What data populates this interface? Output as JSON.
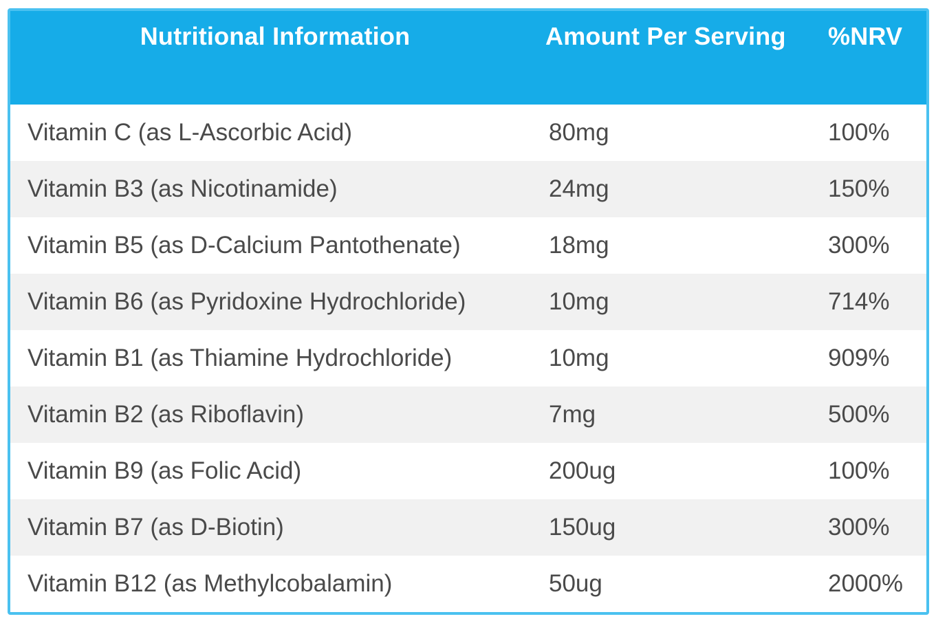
{
  "colors": {
    "header_bg": "#16ace8",
    "border": "#4ac1f0",
    "row_bg": "#ffffff",
    "row_alt_bg": "#f1f1f1",
    "header_text": "#ffffff",
    "body_text": "#4a4a4a"
  },
  "table": {
    "headers": [
      "Nutritional Information",
      "Amount Per Serving",
      "%NRV"
    ],
    "rows": [
      {
        "nutrient": "Vitamin C (as L-Ascorbic Acid)",
        "amount": "80mg",
        "nrv": "100%"
      },
      {
        "nutrient": "Vitamin B3 (as Nicotinamide)",
        "amount": "24mg",
        "nrv": "150%"
      },
      {
        "nutrient": "Vitamin B5 (as D-Calcium Pantothenate)",
        "amount": "18mg",
        "nrv": "300%"
      },
      {
        "nutrient": "Vitamin B6 (as Pyridoxine Hydrochloride)",
        "amount": "10mg",
        "nrv": "714%"
      },
      {
        "nutrient": "Vitamin B1 (as Thiamine Hydrochloride)",
        "amount": "10mg",
        "nrv": "909%"
      },
      {
        "nutrient": "Vitamin B2 (as Riboflavin)",
        "amount": "7mg",
        "nrv": "500%"
      },
      {
        "nutrient": "Vitamin B9 (as Folic Acid)",
        "amount": "200ug",
        "nrv": "100%"
      },
      {
        "nutrient": "Vitamin B7 (as D-Biotin)",
        "amount": "150ug",
        "nrv": "300%"
      },
      {
        "nutrient": "Vitamin B12 (as Methylcobalamin)",
        "amount": "50ug",
        "nrv": "2000%"
      }
    ]
  }
}
